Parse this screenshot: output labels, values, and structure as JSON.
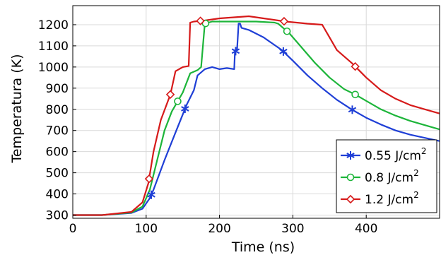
{
  "chart_data": {
    "type": "line",
    "title": "",
    "xlabel": "Time (ns)",
    "ylabel": "Temperatura (K)",
    "xlim": [
      0,
      500
    ],
    "ylim": [
      285,
      1290
    ],
    "xticks": [
      0,
      100,
      200,
      300,
      400
    ],
    "yticks": [
      300,
      400,
      500,
      600,
      700,
      800,
      900,
      1000,
      1100,
      1200
    ],
    "grid": true,
    "legend_position": "bottom-right",
    "series": [
      {
        "name": "0.55 J/cm²",
        "legend_base": "0.55 J/cm",
        "legend_sup": "2",
        "color": "#1f3fd6",
        "marker": "asterisk",
        "x": [
          0,
          40,
          80,
          95,
          105,
          110,
          125,
          140,
          155,
          165,
          170,
          180,
          190,
          200,
          210,
          220,
          221,
          224,
          226,
          228,
          230,
          240,
          260,
          285,
          300,
          320,
          340,
          360,
          380,
          400,
          420,
          440,
          460,
          480,
          500
        ],
        "y": [
          300,
          300,
          310,
          330,
          380,
          420,
          560,
          690,
          820,
          890,
          960,
          990,
          1000,
          990,
          995,
          990,
          1070,
          1085,
          1205,
          1205,
          1185,
          1175,
          1140,
          1080,
          1030,
          960,
          900,
          845,
          800,
          760,
          728,
          700,
          680,
          665,
          650
        ],
        "marker_x": [
          107,
          153,
          222,
          287,
          381
        ]
      },
      {
        "name": "0.8 J/cm²",
        "legend_base": "0.8 J/cm",
        "legend_sup": "2",
        "color": "#1db53a",
        "marker": "circle",
        "x": [
          0,
          40,
          80,
          95,
          105,
          115,
          125,
          135,
          145,
          150,
          160,
          170,
          175,
          180,
          185,
          190,
          200,
          250,
          275,
          280,
          295,
          310,
          330,
          350,
          370,
          385,
          400,
          420,
          440,
          460,
          480,
          500
        ],
        "y": [
          300,
          300,
          312,
          340,
          420,
          560,
          700,
          790,
          850,
          880,
          970,
          985,
          1000,
          1205,
          1210,
          1215,
          1215,
          1215,
          1210,
          1205,
          1160,
          1100,
          1020,
          950,
          895,
          870,
          840,
          800,
          770,
          745,
          725,
          705
        ],
        "marker_x": [
          143,
          181,
          292,
          385
        ]
      },
      {
        "name": "1.2 J/cm²",
        "legend_base": "1.2  J/cm",
        "legend_sup": "2",
        "color": "#d61a1a",
        "marker": "diamond",
        "x": [
          0,
          40,
          80,
          95,
          103,
          110,
          120,
          133,
          140,
          150,
          158,
          160,
          165,
          180,
          200,
          220,
          240,
          260,
          290,
          320,
          340,
          350,
          360,
          380,
          390,
          400,
          420,
          440,
          460,
          480,
          500
        ],
        "y": [
          300,
          300,
          315,
          360,
          450,
          600,
          750,
          870,
          980,
          1000,
          1005,
          1210,
          1215,
          1220,
          1230,
          1235,
          1240,
          1230,
          1215,
          1205,
          1200,
          1140,
          1080,
          1020,
          985,
          950,
          890,
          850,
          820,
          800,
          780
        ],
        "marker_x": [
          104,
          133,
          174,
          288,
          385
        ]
      }
    ]
  }
}
